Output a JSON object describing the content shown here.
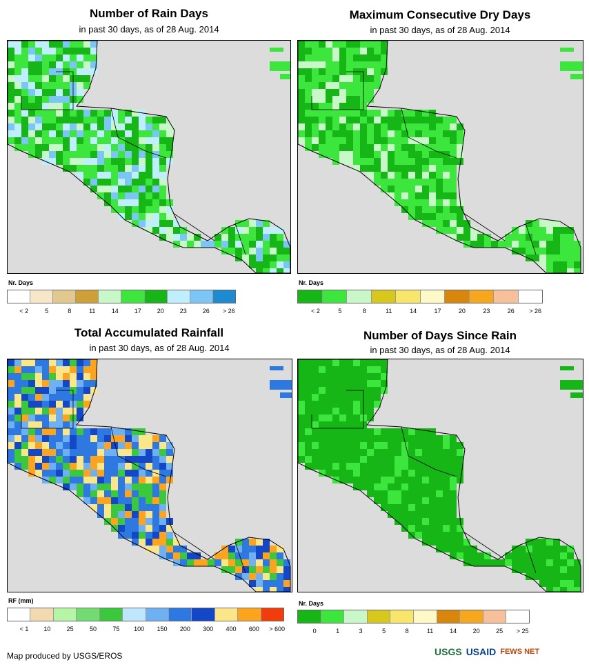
{
  "panels": [
    {
      "title": "Number of Rain Days",
      "subtitle": "in past 30 days, as of 28 Aug. 2014",
      "legend_title": "Nr. Days",
      "legend_colors": [
        "#ffffff",
        "#f7e6c8",
        "#e2c88e",
        "#cf9f3a",
        "#c8f7c8",
        "#3ce63c",
        "#16b616",
        "#bfeefc",
        "#7cc6f5",
        "#1e8ad2"
      ],
      "legend_ticks": [
        "< 2",
        "5",
        "8",
        "11",
        "14",
        "17",
        "20",
        "23",
        "26",
        "> 26"
      ],
      "palette": [
        "#16b616",
        "#3ce63c",
        "#3ce63c",
        "#bfeefc",
        "#7cc6f5",
        "#c8f7c8",
        "#16b616"
      ]
    },
    {
      "title": "Maximum Consecutive Dry Days",
      "subtitle": "in past 30 days, as of 28 Aug. 2014",
      "legend_title": "Nr. Days",
      "legend_colors": [
        "#16b616",
        "#3ce63c",
        "#c8f7c8",
        "#d8c81e",
        "#f7e66a",
        "#fff9c8",
        "#d8870c",
        "#f7a71e",
        "#f7c09a",
        "#ffffff"
      ],
      "legend_ticks": [
        "< 2",
        "5",
        "8",
        "11",
        "14",
        "17",
        "20",
        "23",
        "26",
        "> 26"
      ],
      "palette": [
        "#16b616",
        "#3ce63c",
        "#3ce63c",
        "#16b616",
        "#c8f7c8",
        "#3ce63c"
      ]
    },
    {
      "title": "Total Accumulated Rainfall",
      "subtitle": "in past 30 days, as of 28 Aug. 2014",
      "legend_title": "RF (mm)",
      "legend_colors": [
        "#ffffff",
        "#f2d9b0",
        "#b6f5a6",
        "#72dc72",
        "#3cc83c",
        "#bfe6fc",
        "#6eb0f2",
        "#2e78e2",
        "#1446c8",
        "#fce68a",
        "#fca41e",
        "#f23c0c"
      ],
      "legend_ticks": [
        "< 1",
        "10",
        "25",
        "50",
        "75",
        "100",
        "150",
        "200",
        "300",
        "400",
        "600",
        "> 600"
      ],
      "palette": [
        "#2e78e2",
        "#2e78e2",
        "#6eb0f2",
        "#1446c8",
        "#fca41e",
        "#fce68a",
        "#3cc83c"
      ]
    },
    {
      "title": "Number of Days Since Rain",
      "subtitle": "in past 30 days, as of 28 Aug. 2014",
      "legend_title": "Nr. Days",
      "legend_colors": [
        "#16b616",
        "#3ce63c",
        "#c8f7c8",
        "#d8c81e",
        "#f7e66a",
        "#fff9c8",
        "#d8870c",
        "#f7a71e",
        "#f7c09a",
        "#ffffff"
      ],
      "legend_ticks": [
        "0",
        "1",
        "3",
        "5",
        "8",
        "11",
        "14",
        "20",
        "25",
        "> 25"
      ],
      "palette": [
        "#16b616",
        "#16b616",
        "#16b616",
        "#16b616",
        "#3ce63c"
      ]
    }
  ],
  "credit": "Map produced by USGS/EROS",
  "logos": [
    "USGS",
    "USAID",
    "FEWS NET"
  ]
}
